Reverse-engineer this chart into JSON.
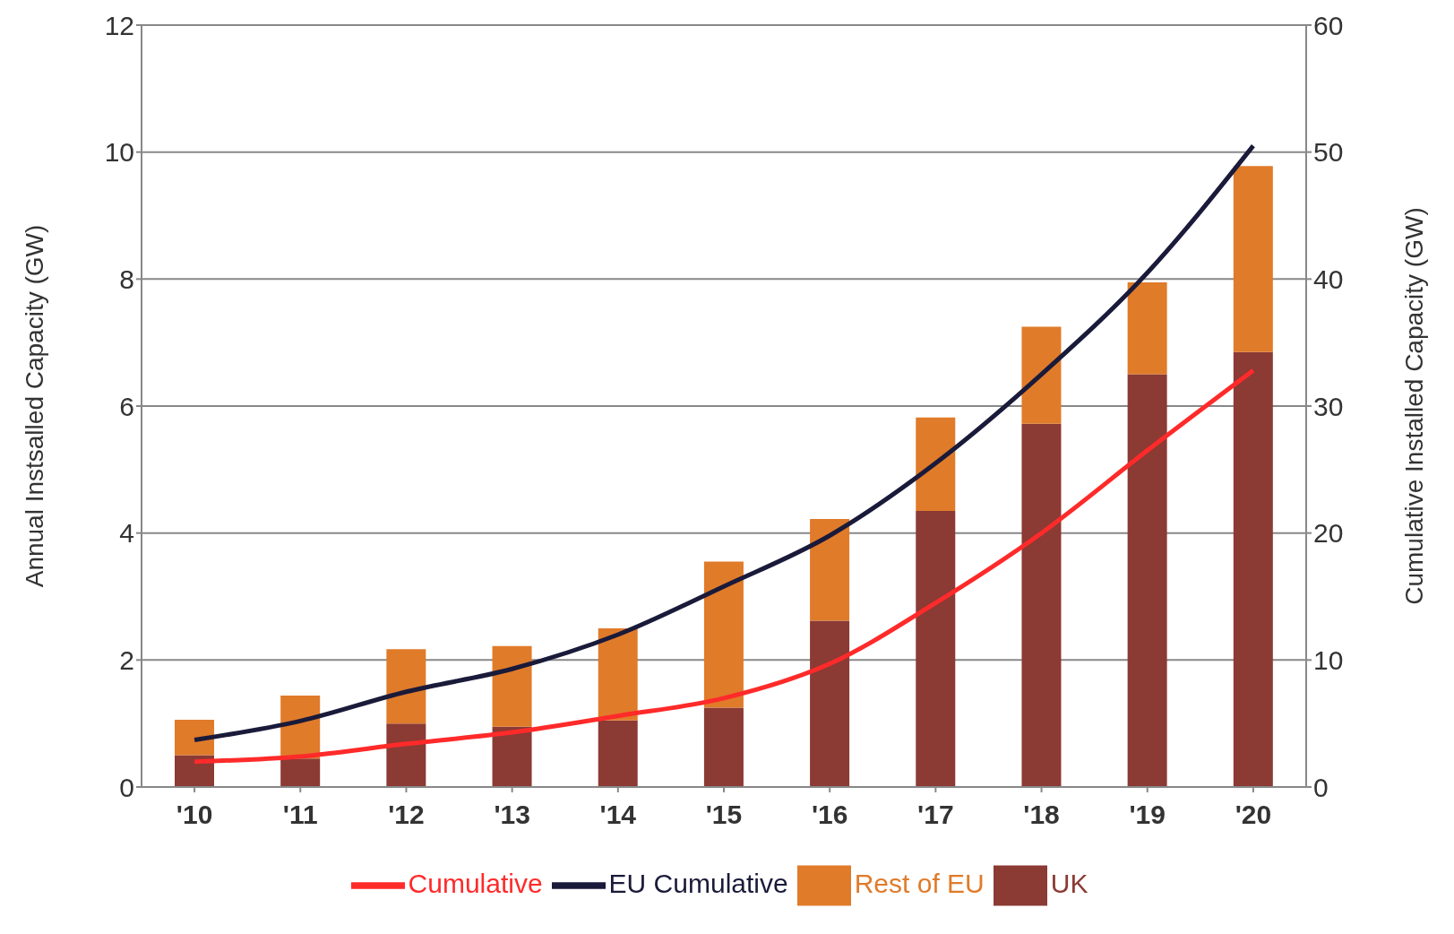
{
  "chart_data": {
    "type": "bar",
    "stacked": true,
    "categories": [
      "'10",
      "'11",
      "'12",
      "'13",
      "'14",
      "'15",
      "'16",
      "'17",
      "'18",
      "'19",
      "'20"
    ],
    "series": [
      {
        "name": "UK",
        "color": "#8b3a34",
        "values": [
          0.5,
          0.45,
          1.0,
          0.95,
          1.05,
          1.25,
          2.62,
          4.35,
          5.72,
          6.5,
          6.85
        ]
      },
      {
        "name": "Rest of EU",
        "color": "#e07b2a",
        "values": [
          0.56,
          0.99,
          1.17,
          1.27,
          1.45,
          2.3,
          1.6,
          1.47,
          1.53,
          1.45,
          2.93
        ]
      },
      {
        "name": "Cumulative",
        "type": "line",
        "axis": "y2",
        "color": "#ff2a2a",
        "values": [
          2.0,
          2.4,
          3.4,
          4.3,
          5.6,
          7.0,
          9.7,
          14.5,
          20.0,
          26.5,
          32.8
        ]
      },
      {
        "name": "EU Cumulative",
        "type": "line",
        "axis": "y2",
        "color": "#1a1a3a",
        "values": [
          3.7,
          5.2,
          7.5,
          9.3,
          12.0,
          15.8,
          19.8,
          25.5,
          32.5,
          40.5,
          50.5
        ]
      }
    ],
    "ylabel": "Annual Instsalled Capacity (GW)",
    "y2label": "Cumulative Installed Capacity (GW)",
    "ylim": [
      0,
      12
    ],
    "yticks": [
      0,
      2,
      4,
      6,
      8,
      10,
      12
    ],
    "y2lim": [
      0,
      60
    ],
    "y2ticks": [
      0,
      10,
      20,
      30,
      40,
      50,
      60
    ],
    "grid": "y",
    "legend": "bottom",
    "marker": "none",
    "line_style": "solid"
  }
}
